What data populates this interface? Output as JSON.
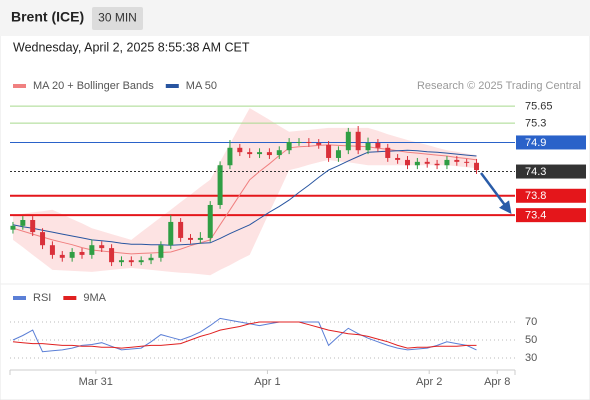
{
  "header": {
    "title": "Brent (ICE)",
    "interval": "30 MIN",
    "timestamp": "Wednesday, April 2, 2025 8:55:38 AM CET"
  },
  "chart_data": [
    {
      "type": "candlestick",
      "source": "Research © 2025 Trading Central",
      "up_color": "#2f9e44",
      "down_color": "#d9303a",
      "xlim": [
        -0.3,
        50.9
      ],
      "ylim": [
        72.0,
        75.9
      ],
      "open": [
        73.1,
        73.18,
        73.3,
        73.05,
        72.78,
        72.58,
        72.52,
        72.64,
        72.58,
        72.78,
        72.72,
        72.43,
        72.47,
        72.43,
        72.47,
        72.52,
        72.78,
        73.26,
        72.93,
        72.89,
        72.93,
        73.61,
        74.43,
        74.79,
        74.7,
        74.66,
        74.7,
        74.64,
        74.74,
        74.91,
        74.91,
        74.89,
        74.85,
        74.58,
        74.74,
        75.12,
        74.74,
        74.89,
        74.79,
        74.58,
        74.54,
        74.43,
        74.5,
        74.46,
        74.43,
        74.54,
        74.5,
        74.48
      ],
      "high": [
        73.26,
        73.38,
        73.38,
        73.13,
        72.86,
        72.66,
        72.72,
        72.72,
        72.9,
        72.86,
        72.8,
        72.55,
        72.55,
        72.55,
        72.6,
        72.86,
        73.4,
        73.34,
        73.01,
        73.05,
        73.69,
        74.51,
        74.95,
        74.87,
        74.78,
        74.78,
        74.78,
        74.82,
        74.99,
        74.99,
        74.99,
        74.97,
        74.93,
        74.82,
        75.2,
        75.24,
        75.0,
        74.97,
        74.87,
        74.66,
        74.62,
        74.58,
        74.58,
        74.54,
        74.62,
        74.62,
        74.56,
        74.56
      ],
      "low": [
        73.02,
        73.1,
        72.97,
        72.7,
        72.5,
        72.44,
        72.44,
        72.5,
        72.5,
        72.64,
        72.35,
        72.35,
        72.35,
        72.37,
        72.39,
        72.44,
        72.7,
        72.85,
        72.81,
        72.81,
        72.85,
        73.53,
        74.35,
        74.62,
        74.58,
        74.58,
        74.56,
        74.56,
        74.66,
        74.83,
        74.81,
        74.77,
        74.5,
        74.5,
        74.66,
        74.66,
        74.66,
        74.71,
        74.5,
        74.46,
        74.35,
        74.35,
        74.38,
        74.35,
        74.35,
        74.42,
        74.4,
        74.25
      ],
      "close": [
        73.18,
        73.3,
        73.05,
        72.78,
        72.58,
        72.52,
        72.64,
        72.58,
        72.78,
        72.72,
        72.43,
        72.47,
        72.43,
        72.47,
        72.52,
        72.78,
        73.26,
        72.93,
        72.89,
        72.93,
        73.61,
        74.43,
        74.79,
        74.7,
        74.66,
        74.7,
        74.64,
        74.74,
        74.91,
        74.91,
        74.89,
        74.85,
        74.58,
        74.74,
        75.12,
        74.74,
        74.89,
        74.79,
        74.58,
        74.54,
        74.43,
        74.5,
        74.46,
        74.43,
        74.54,
        74.5,
        74.48,
        74.33
      ],
      "series": [
        {
          "name": "MA 20 + Bollinger Bands",
          "color": "#f08080",
          "band_color": "#fde3e3",
          "values": [
            73.13,
            73.07,
            73.01,
            72.95,
            72.89,
            72.84,
            72.79,
            72.73,
            72.68,
            72.66,
            72.64,
            72.62,
            72.6,
            72.61,
            72.62,
            72.63,
            72.64,
            72.7,
            72.77,
            72.83,
            72.89,
            73.2,
            73.51,
            73.82,
            74.13,
            74.3,
            74.46,
            74.63,
            74.79,
            74.81,
            74.82,
            74.84,
            74.85,
            74.84,
            74.83,
            74.82,
            74.81,
            74.78,
            74.76,
            74.73,
            74.7,
            74.68,
            74.66,
            74.64,
            74.62,
            74.59,
            74.57,
            74.54
          ],
          "upper": [
            73.4,
            73.43,
            73.46,
            73.48,
            73.51,
            73.42,
            73.32,
            73.23,
            73.13,
            73.07,
            73.01,
            72.95,
            72.89,
            73.05,
            73.2,
            73.36,
            73.51,
            73.67,
            73.82,
            73.98,
            74.13,
            74.5,
            74.87,
            75.24,
            75.61,
            75.49,
            75.37,
            75.24,
            75.12,
            75.14,
            75.16,
            75.18,
            75.2,
            75.2,
            75.2,
            75.2,
            75.2,
            75.14,
            75.07,
            75.01,
            74.95,
            74.9,
            74.85,
            74.79,
            74.74,
            74.71,
            74.67,
            74.64
          ],
          "lower": [
            72.89,
            72.74,
            72.58,
            72.43,
            72.27,
            72.26,
            72.25,
            72.24,
            72.23,
            72.25,
            72.27,
            72.29,
            72.31,
            72.29,
            72.27,
            72.25,
            72.23,
            72.21,
            72.2,
            72.18,
            72.16,
            72.27,
            72.37,
            72.48,
            72.58,
            73.02,
            73.46,
            73.89,
            74.33,
            74.38,
            74.44,
            74.49,
            74.54,
            74.51,
            74.49,
            74.46,
            74.43,
            74.43,
            74.43,
            74.43,
            74.43,
            74.43,
            74.43,
            74.43,
            74.43,
            74.41,
            74.39,
            74.37
          ]
        },
        {
          "name": "MA 50",
          "color": "#2855a0",
          "values": [
            73.2,
            73.16,
            73.13,
            73.09,
            73.05,
            73.01,
            72.97,
            72.93,
            72.89,
            72.87,
            72.85,
            72.82,
            72.8,
            72.8,
            72.79,
            72.79,
            72.78,
            72.79,
            72.8,
            72.82,
            72.83,
            72.92,
            73.02,
            73.11,
            73.2,
            73.33,
            73.46,
            73.58,
            73.71,
            73.87,
            74.02,
            74.18,
            74.33,
            74.42,
            74.52,
            74.61,
            74.7,
            74.71,
            74.72,
            74.73,
            74.74,
            74.73,
            74.71,
            74.7,
            74.68,
            74.66,
            74.64,
            74.62
          ]
        }
      ],
      "levels": [
        {
          "value": 75.65,
          "color": "#a8d98e",
          "boxed": false
        },
        {
          "value": 75.3,
          "color": "#a8d98e",
          "boxed": false
        },
        {
          "value": 74.9,
          "color": "#2a62c9",
          "boxed": true
        },
        {
          "value": 74.3,
          "color": "#333333",
          "boxed": true,
          "dashed": true
        },
        {
          "value": 73.8,
          "color": "#e4161b",
          "boxed": true
        },
        {
          "value": 73.4,
          "color": "#e4161b",
          "boxed": true
        }
      ]
    },
    {
      "type": "line",
      "xlim": [
        -0.3,
        50.9
      ],
      "ylim": [
        19,
        83
      ],
      "yticks": [
        30,
        50,
        70
      ],
      "grid": true,
      "xticks": [
        {
          "value": 8.4,
          "label": "Mar 31"
        },
        {
          "value": 25.8,
          "label": "Apr 1"
        },
        {
          "value": 42.2,
          "label": "Apr 2"
        },
        {
          "value": 49.1,
          "label": "Apr 8"
        }
      ],
      "series": [
        {
          "name": "RSI",
          "color": "#5b7fd6",
          "values": [
            50,
            55,
            61,
            37,
            38,
            39,
            41,
            44,
            45,
            47,
            43,
            39,
            40,
            41,
            48,
            56,
            53,
            50,
            54,
            59,
            66,
            74,
            72,
            70,
            68,
            66,
            68,
            70,
            70,
            70,
            70,
            70,
            44,
            54,
            63,
            57,
            52,
            48,
            44,
            41,
            39,
            40,
            41,
            44,
            48,
            46,
            44,
            39
          ]
        },
        {
          "name": "9MA",
          "color": "#e02020",
          "values": [
            48,
            47,
            46,
            46,
            45,
            44,
            44,
            43,
            43,
            42,
            42,
            41,
            42,
            43,
            44,
            44,
            45,
            46,
            50,
            54,
            57,
            61,
            63,
            65,
            68,
            70,
            70,
            70,
            70,
            70,
            67,
            64,
            61,
            59,
            57,
            56,
            54,
            51,
            48,
            44,
            41,
            42,
            42,
            43,
            43,
            43,
            44,
            44
          ]
        }
      ]
    }
  ]
}
